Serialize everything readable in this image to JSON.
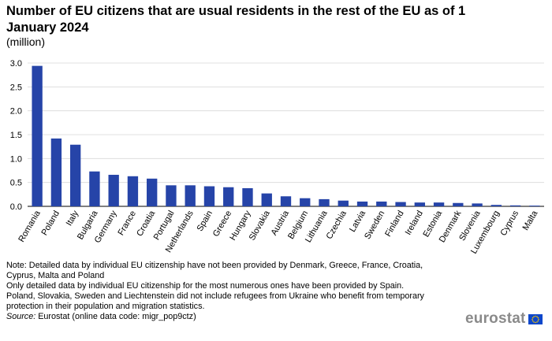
{
  "header": {
    "title": "Number of EU citizens that are usual residents in the rest of the EU as of 1 January 2024",
    "subtitle": "(million)"
  },
  "notes": {
    "line1": "Note: Detailed data by individual  EU citizenship  have not been provided by Denmark, Greece, France, Croatia, Cyprus, Malta and Poland",
    "line2": "Only detailed data by individual  EU citizenship  for the most numerous ones have been provided by Spain.",
    "line3": "Poland, Slovakia, Sweden and Liechtenstein did not include  refugees from Ukraine who benefit from temporary protection in their population  and migration statistics."
  },
  "source": {
    "label": "Source:",
    "text": " Eurostat (online data code: migr_pop9ctz)"
  },
  "logo": {
    "text": "eurostat"
  },
  "colors": {
    "bar": "#2644a8",
    "grid": "#d9d9d9",
    "axis": "#000000"
  },
  "chart_data": {
    "type": "bar",
    "title": "Number of EU citizens that are usual residents in the rest of the EU as of 1 January 2024",
    "ylabel": "(million)",
    "xlabel": "",
    "ylim": [
      0,
      3.0
    ],
    "yticks": [
      "0.0",
      "0.5",
      "1.0",
      "1.5",
      "2.0",
      "2.5",
      "3.0"
    ],
    "grid": true,
    "categories": [
      "Romania",
      "Poland",
      "Italy",
      "Bulgaria",
      "Germany",
      "France",
      "Croatia",
      "Portugal",
      "Netherlands",
      "Spain",
      "Greece",
      "Hungary",
      "Slovakia",
      "Austria",
      "Belgium",
      "Lithuania",
      "Czechia",
      "Latvia",
      "Sweden",
      "Finland",
      "Ireland",
      "Estonia",
      "Denmark",
      "Slovenia",
      "Luxembourg",
      "Cyprus",
      "Malta"
    ],
    "values": [
      2.94,
      1.42,
      1.29,
      0.73,
      0.66,
      0.63,
      0.58,
      0.44,
      0.44,
      0.42,
      0.4,
      0.38,
      0.27,
      0.21,
      0.17,
      0.15,
      0.12,
      0.1,
      0.1,
      0.09,
      0.08,
      0.08,
      0.07,
      0.06,
      0.03,
      0.02,
      0.015
    ]
  }
}
